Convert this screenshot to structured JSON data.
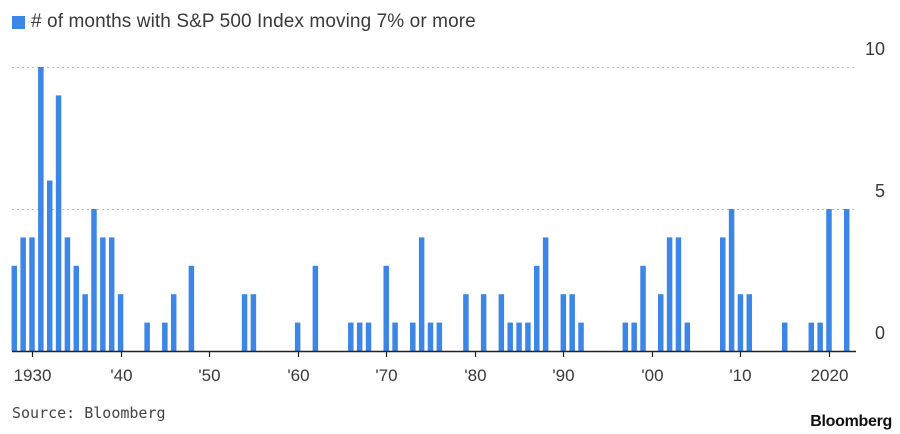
{
  "colors": {
    "bar": "#3b86e6",
    "brand_text": "#111111"
  },
  "legend": {
    "label": "# of months with S&P 500 Index moving 7% or more",
    "color": "#3b86e6"
  },
  "source_note": "Source: Bloomberg",
  "brand": "Bloomberg",
  "chart_data": {
    "type": "bar",
    "title": "",
    "xlabel": "",
    "ylabel": "",
    "ylim": [
      0,
      10
    ],
    "yticks": [
      {
        "value": 0,
        "label": "0"
      },
      {
        "value": 5,
        "label": "5"
      },
      {
        "value": 10,
        "label": "10"
      }
    ],
    "xticks": [
      {
        "value": 1930,
        "label": "1930"
      },
      {
        "value": 1940,
        "label": "'40"
      },
      {
        "value": 1950,
        "label": "'50"
      },
      {
        "value": 1960,
        "label": "'60"
      },
      {
        "value": 1970,
        "label": "'70"
      },
      {
        "value": 1980,
        "label": "'80"
      },
      {
        "value": 1990,
        "label": "'90"
      },
      {
        "value": 2000,
        "label": "'00"
      },
      {
        "value": 2010,
        "label": "'10"
      },
      {
        "value": 2020,
        "label": "2020"
      }
    ],
    "grid": "horizontal dotted",
    "legend_position": "top-left",
    "x": [
      1928,
      1929,
      1930,
      1931,
      1932,
      1933,
      1934,
      1935,
      1936,
      1937,
      1938,
      1939,
      1940,
      1941,
      1942,
      1943,
      1944,
      1945,
      1946,
      1947,
      1948,
      1949,
      1950,
      1951,
      1952,
      1953,
      1954,
      1955,
      1956,
      1957,
      1958,
      1959,
      1960,
      1961,
      1962,
      1963,
      1964,
      1965,
      1966,
      1967,
      1968,
      1969,
      1970,
      1971,
      1972,
      1973,
      1974,
      1975,
      1976,
      1977,
      1978,
      1979,
      1980,
      1981,
      1982,
      1983,
      1984,
      1985,
      1986,
      1987,
      1988,
      1989,
      1990,
      1991,
      1992,
      1993,
      1994,
      1995,
      1996,
      1997,
      1998,
      1999,
      2000,
      2001,
      2002,
      2003,
      2004,
      2005,
      2006,
      2007,
      2008,
      2009,
      2010,
      2011,
      2012,
      2013,
      2014,
      2015,
      2016,
      2017,
      2018,
      2019,
      2020,
      2021,
      2022
    ],
    "series": [
      {
        "name": "# of months with S&P 500 Index moving 7% or more",
        "values": [
          3,
          4,
          4,
          10,
          6,
          9,
          4,
          3,
          2,
          5,
          4,
          4,
          2,
          0,
          0,
          1,
          0,
          1,
          2,
          0,
          3,
          0,
          0,
          0,
          0,
          0,
          2,
          2,
          0,
          0,
          0,
          0,
          1,
          0,
          3,
          0,
          0,
          0,
          1,
          1,
          1,
          0,
          3,
          1,
          0,
          1,
          4,
          1,
          1,
          0,
          0,
          2,
          0,
          2,
          0,
          2,
          1,
          1,
          1,
          3,
          4,
          0,
          2,
          2,
          1,
          0,
          0,
          0,
          0,
          1,
          1,
          3,
          0,
          2,
          4,
          4,
          1,
          0,
          0,
          0,
          4,
          5,
          2,
          2,
          0,
          0,
          0,
          1,
          0,
          0,
          1,
          1,
          5,
          0,
          5
        ]
      }
    ]
  }
}
